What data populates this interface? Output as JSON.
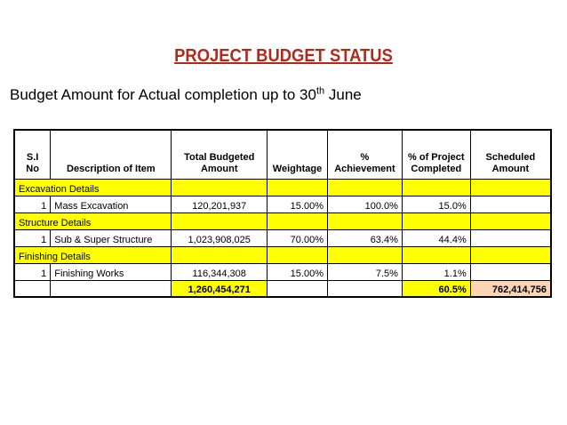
{
  "title": "PROJECT BUDGET STATUS",
  "subtitle": {
    "text": "Budget Amount for Actual completion up to 30",
    "sup": "th",
    "tail": " June"
  },
  "table": {
    "headers": {
      "sl_line1": "S.I",
      "sl_line2": "No",
      "description": "Description of Item",
      "budget_line1": "Total Budgeted",
      "budget_line2": "Amount",
      "weightage": "Weightage",
      "achievement_line1": "%",
      "achievement_line2": "Achievement",
      "completed_line1": "% of Project",
      "completed_line2": "Completed",
      "scheduled_line1": "Scheduled",
      "scheduled_line2": "Amount"
    },
    "sections": [
      {
        "label": "Excavation Details",
        "row": {
          "sl": "1",
          "description": "Mass Excavation",
          "budget": "120,201,937",
          "weightage": "15.00%",
          "achievement": "100.0%",
          "completed": "15.0%",
          "scheduled": ""
        }
      },
      {
        "label": "Structure Details",
        "row": {
          "sl": "1",
          "description": "Sub & Super Structure",
          "budget": "1,023,908,025",
          "weightage": "70.00%",
          "achievement": "63.4%",
          "completed": "44.4%",
          "scheduled": ""
        }
      },
      {
        "label": "Finishing Details",
        "row": {
          "sl": "1",
          "description": "Finishing Works",
          "budget": "116,344,308",
          "weightage": "15.00%",
          "achievement": "7.5%",
          "completed": "1.1%",
          "scheduled": ""
        }
      }
    ],
    "totals": {
      "budget": "1,260,454,271",
      "completed": "60.5%",
      "scheduled": "762,414,756"
    }
  },
  "colors": {
    "title": "#b42818",
    "section_fill": "#ffff00",
    "scheduled_total_fill": "#fcd5b4"
  }
}
